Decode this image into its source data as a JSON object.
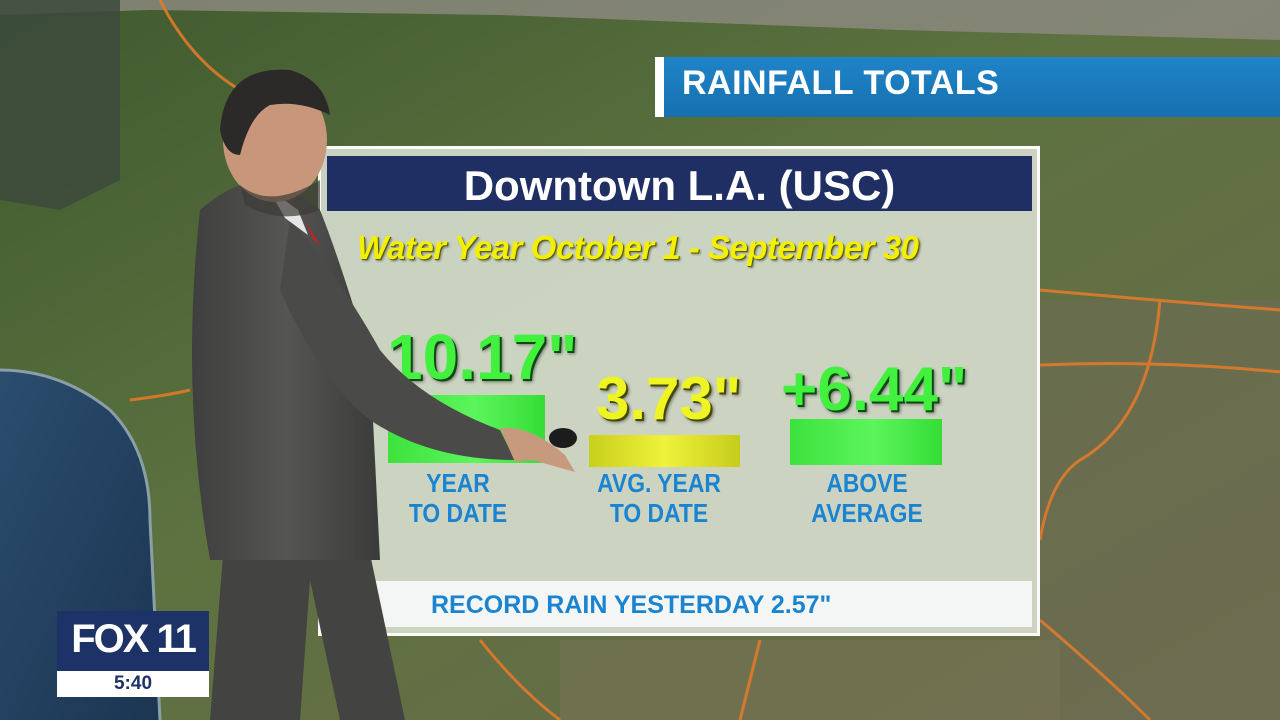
{
  "title_bar": {
    "text": "RAINFALL TOTALS"
  },
  "panel": {
    "header": "Downtown L.A. (USC)",
    "subtitle": "Water Year October 1 - September 30",
    "stats": [
      {
        "value": "10.17\"",
        "label_line1": "YEAR",
        "label_line2": "TO DATE",
        "color": "#42f03e"
      },
      {
        "value": "3.73\"",
        "label_line1": "AVG. YEAR",
        "label_line2": "TO DATE",
        "color": "#eef523"
      },
      {
        "value": "+6.44\"",
        "label_line1": "ABOVE",
        "label_line2": "AVERAGE",
        "color": "#42f03e"
      }
    ],
    "footer": "RECORD RAIN YESTERDAY 2.57\""
  },
  "logo": {
    "brand": "FOX 11",
    "time": "5:40",
    "color": "#1d3266"
  }
}
